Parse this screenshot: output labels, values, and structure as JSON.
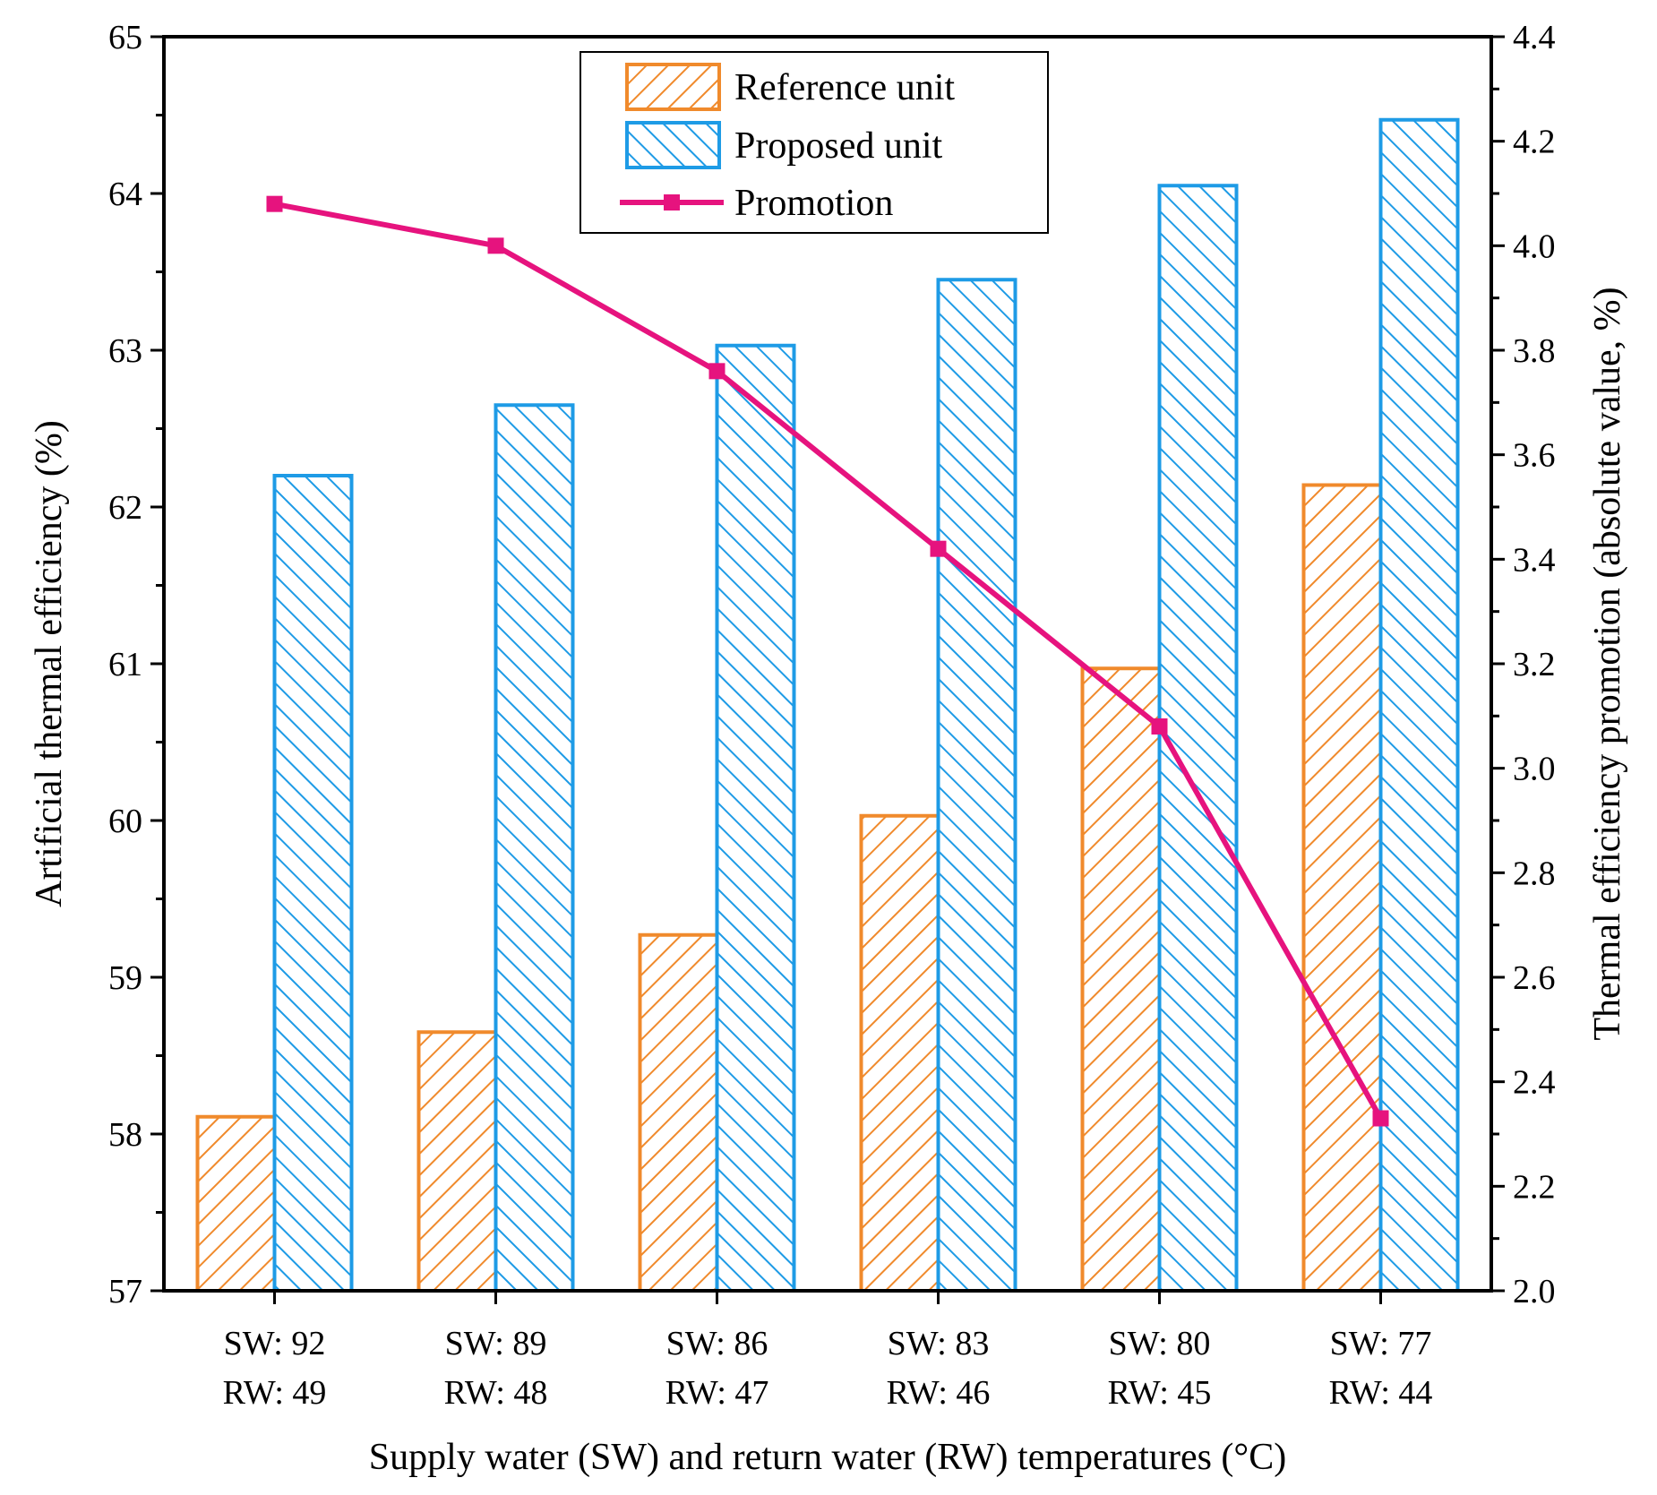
{
  "chart_data": {
    "type": "bar",
    "categories": [
      {
        "sw": "SW: 92",
        "rw": "RW: 49"
      },
      {
        "sw": "SW: 89",
        "rw": "RW: 48"
      },
      {
        "sw": "SW: 86",
        "rw": "RW: 47"
      },
      {
        "sw": "SW: 83",
        "rw": "RW: 46"
      },
      {
        "sw": "SW: 80",
        "rw": "RW: 45"
      },
      {
        "sw": "SW: 77",
        "rw": "RW: 44"
      }
    ],
    "series": [
      {
        "name": "Reference unit",
        "axis": "left",
        "kind": "bar",
        "pattern": "hatch-up",
        "color": "#F08A2C",
        "values": [
          58.11,
          58.65,
          59.27,
          60.03,
          60.97,
          62.14
        ]
      },
      {
        "name": "Proposed unit",
        "axis": "left",
        "kind": "bar",
        "pattern": "hatch-down",
        "color": "#1E9BE6",
        "values": [
          62.2,
          62.65,
          63.03,
          63.45,
          64.05,
          64.47
        ]
      },
      {
        "name": "Promotion",
        "axis": "right",
        "kind": "line",
        "marker": "square",
        "color": "#E6137E",
        "values": [
          4.08,
          4.0,
          3.76,
          3.42,
          3.08,
          2.33
        ]
      }
    ],
    "xlabel": "Supply water (SW) and return water (RW) temperatures (°C)",
    "ylabel": "Artificial thermal efficiency (%)",
    "y2label": "Thermal efficiency promotion (absolute value, %)",
    "ylim": [
      57,
      65
    ],
    "y2lim": [
      2.0,
      4.4
    ],
    "yticks": [
      "57",
      "58",
      "59",
      "60",
      "61",
      "62",
      "63",
      "64",
      "65"
    ],
    "y2ticks": [
      "2.0",
      "2.2",
      "2.4",
      "2.6",
      "2.8",
      "3.0",
      "3.2",
      "3.4",
      "3.6",
      "3.8",
      "4.0",
      "4.2",
      "4.4"
    ],
    "legend_position": "top-center",
    "grid": false
  }
}
